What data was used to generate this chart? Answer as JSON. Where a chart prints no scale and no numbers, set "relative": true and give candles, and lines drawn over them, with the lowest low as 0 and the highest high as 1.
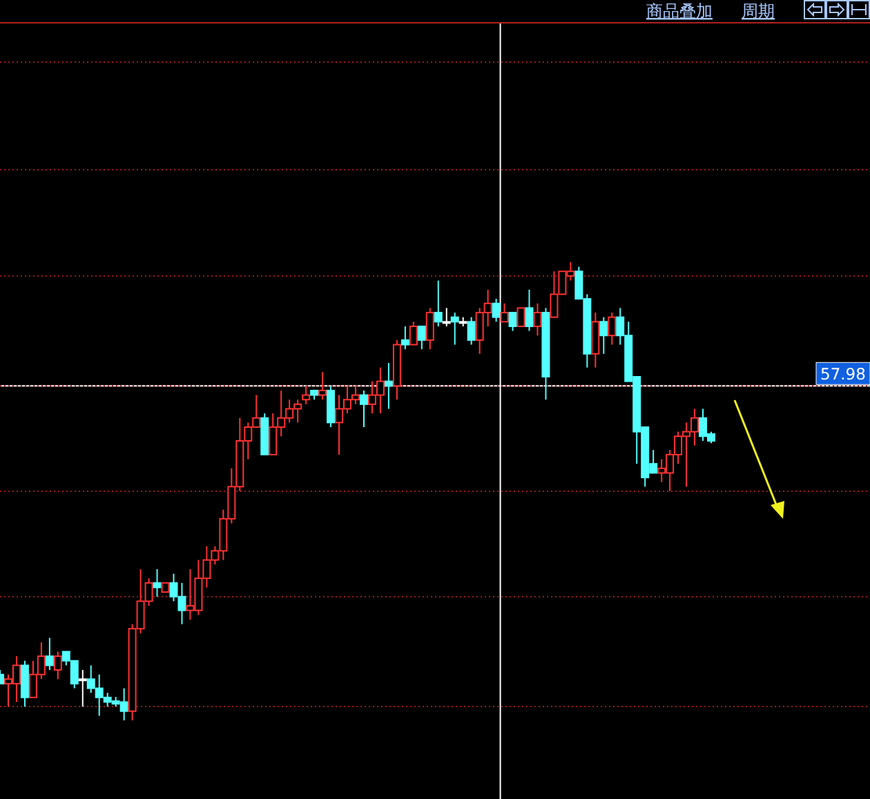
{
  "chart_data": {
    "type": "candlestick",
    "relative": true,
    "grid": true,
    "colors": [
      "#54ffff",
      "#ff3232",
      "#ff3232",
      "#54ffff",
      "#ff3232",
      "#ff3232",
      "#54ffff",
      "#ff3232",
      "#54ffff",
      "#54ffff",
      "#ffffff",
      "#54ffff",
      "#54ffff",
      "#54ffff",
      "#54ffff",
      "#54ffff",
      "#ff3232",
      "#ff3232",
      "#ff3232",
      "#54ffff",
      "#ff3232",
      "#54ffff",
      "#54ffff",
      "#ff3232",
      "#ff3232",
      "#ff3232",
      "#ff3232",
      "#ff3232",
      "#ff3232",
      "#ff3232",
      "#ff3232",
      "#ff3232",
      "#54ffff",
      "#ff3232",
      "#ff3232",
      "#ff3232",
      "#ff3232",
      "#ff3232",
      "#54ffff",
      "#ff3232",
      "#54ffff",
      "#ff3232",
      "#ff3232",
      "#ff3232",
      "#54ffff",
      "#ff3232",
      "#ff3232",
      "#54ffff",
      "#ff3232",
      "#54ffff",
      "#ff3232",
      "#54ffff",
      "#ff3232",
      "#54ffff",
      "#ffffff",
      "#54ffff",
      "#ffffff",
      "#54ffff",
      "#ff3232",
      "#ff3232",
      "#54ffff",
      "#ff3232",
      "#54ffff",
      "#ff3232",
      "#54ffff",
      "#ff3232",
      "#54ffff",
      "#ff3232",
      "#ff3232",
      "#ff3232",
      "#54ffff",
      "#54ffff",
      "#ff3232",
      "#54ffff",
      "#ff3232",
      "#54ffff",
      "#54ffff",
      "#54ffff",
      "#54ffff",
      "#54ffff",
      "#ff3232",
      "#ff3232",
      "#ff3232",
      "#ff3232",
      "#ff3232",
      "#54ffff",
      "#54ffff"
    ],
    "categories": [
      null,
      null,
      null,
      null,
      null,
      null,
      null,
      null,
      null,
      null,
      null,
      null,
      null,
      null,
      null,
      null,
      null,
      null,
      null,
      null,
      null,
      null,
      null,
      null,
      null,
      null,
      null,
      null,
      null,
      null,
      null,
      null,
      null,
      null,
      null,
      null,
      null,
      null,
      null,
      null,
      null,
      null,
      null,
      null,
      null,
      null,
      null,
      null,
      null,
      null,
      null,
      null,
      null,
      null,
      null,
      null,
      null,
      null,
      null,
      null,
      null,
      null,
      null,
      null,
      null,
      null,
      null,
      null,
      null,
      null,
      null,
      null,
      null,
      null,
      null,
      null,
      null,
      null,
      null,
      null,
      null,
      null,
      null,
      null,
      null,
      null,
      null
    ],
    "ohlc": [
      [
        0.1,
        0.11,
        0.08,
        0.08
      ],
      [
        0.08,
        0.1,
        0.03,
        0.09
      ],
      [
        0.08,
        0.14,
        0.04,
        0.12
      ],
      [
        0.12,
        0.13,
        0.03,
        0.05
      ],
      [
        0.05,
        0.13,
        0.05,
        0.1
      ],
      [
        0.1,
        0.17,
        0.09,
        0.14
      ],
      [
        0.14,
        0.18,
        0.11,
        0.12
      ],
      [
        0.11,
        0.15,
        0.09,
        0.14
      ],
      [
        0.15,
        0.15,
        0.12,
        0.13
      ],
      [
        0.13,
        0.13,
        0.07,
        0.08
      ],
      [
        0.09,
        0.11,
        0.03,
        0.09
      ],
      [
        0.09,
        0.12,
        0.06,
        0.07
      ],
      [
        0.07,
        0.1,
        0.01,
        0.05
      ],
      [
        0.05,
        0.06,
        0.03,
        0.04
      ],
      [
        0.042,
        0.051,
        0.03,
        0.036
      ],
      [
        0.04,
        0.07,
        0.0,
        0.02
      ],
      [
        0.02,
        0.21,
        0,
        0.2
      ],
      [
        0.2,
        0.33,
        0.19,
        0.26
      ],
      [
        0.26,
        0.31,
        0.25,
        0.3
      ],
      [
        0.3,
        0.33,
        0.27,
        0.29
      ],
      [
        0.28,
        0.3,
        0.28,
        0.3
      ],
      [
        0.3,
        0.32,
        0.26,
        0.27
      ],
      [
        0.27,
        0.3,
        0.21,
        0.24
      ],
      [
        0.24,
        0.33,
        0.22,
        0.25
      ],
      [
        0.24,
        0.35,
        0.23,
        0.31
      ],
      [
        0.31,
        0.38,
        0.29,
        0.35
      ],
      [
        0.35,
        0.38,
        0.34,
        0.37
      ],
      [
        0.37,
        0.46,
        0.35,
        0.44
      ],
      [
        0.44,
        0.55,
        0.43,
        0.51
      ],
      [
        0.51,
        0.66,
        0.5,
        0.61
      ],
      [
        0.61,
        0.65,
        0.57,
        0.64
      ],
      [
        0.64,
        0.71,
        0.64,
        0.66
      ],
      [
        0.66,
        0.67,
        0.58,
        0.58
      ],
      [
        0.58,
        0.67,
        0.58,
        0.64
      ],
      [
        0.64,
        0.72,
        0.62,
        0.66
      ],
      [
        0.66,
        0.7,
        0.65,
        0.68
      ],
      [
        0.68,
        0.7,
        0.65,
        0.69
      ],
      [
        0.7,
        0.73,
        0.69,
        0.71
      ],
      [
        0.72,
        0.72,
        0.7,
        0.71
      ],
      [
        0.71,
        0.76,
        0.7,
        0.72
      ],
      [
        0.72,
        0.73,
        0.64,
        0.65
      ],
      [
        0.65,
        0.71,
        0.58,
        0.68
      ],
      [
        0.68,
        0.73,
        0.67,
        0.7
      ],
      [
        0.7,
        0.73,
        0.69,
        0.71
      ],
      [
        0.71,
        0.72,
        0.64,
        0.69
      ],
      [
        0.69,
        0.74,
        0.67,
        0.71
      ],
      [
        0.71,
        0.77,
        0.67,
        0.74
      ],
      [
        0.74,
        0.78,
        0.68,
        0.73
      ],
      [
        0.73,
        0.83,
        0.7,
        0.82
      ],
      [
        0.83,
        0.86,
        0.81,
        0.82
      ],
      [
        0.82,
        0.87,
        0.82,
        0.86
      ],
      [
        0.86,
        0.86,
        0.81,
        0.83
      ],
      [
        0.83,
        0.9,
        0.81,
        0.89
      ],
      [
        0.89,
        0.96,
        0.86,
        0.87
      ],
      [
        0.87,
        0.9,
        0.86,
        0.87
      ],
      [
        0.88,
        0.89,
        0.82,
        0.87
      ],
      [
        0.87,
        0.88,
        0.86,
        0.87
      ],
      [
        0.87,
        0.88,
        0.82,
        0.83
      ],
      [
        0.83,
        0.9,
        0.8,
        0.89
      ],
      [
        0.89,
        0.94,
        0.86,
        0.91
      ],
      [
        0.91,
        0.92,
        0.87,
        0.88
      ],
      [
        0.87,
        0.91,
        0.87,
        0.89
      ],
      [
        0.89,
        0.89,
        0.85,
        0.86
      ],
      [
        0.86,
        0.9,
        0.86,
        0.9
      ],
      [
        0.9,
        0.94,
        0.85,
        0.86
      ],
      [
        0.86,
        0.91,
        0.84,
        0.89
      ],
      [
        0.89,
        0.9,
        0.7,
        0.75
      ],
      [
        0.88,
        0.98,
        0.88,
        0.93
      ],
      [
        0.93,
        0.98,
        0.93,
        0.98
      ],
      [
        0.97,
        1.0,
        0.96,
        0.98
      ],
      [
        0.98,
        0.99,
        0.92,
        0.92
      ],
      [
        0.92,
        0.93,
        0.77,
        0.8
      ],
      [
        0.8,
        0.89,
        0.77,
        0.87
      ],
      [
        0.87,
        0.88,
        0.8,
        0.84
      ],
      [
        0.84,
        0.89,
        0.82,
        0.88
      ],
      [
        0.88,
        0.9,
        0.82,
        0.84
      ],
      [
        0.84,
        0.87,
        0.74,
        0.74
      ],
      [
        0.75,
        0.75,
        0.56,
        0.63
      ],
      [
        0.64,
        0.64,
        0.51,
        0.53
      ],
      [
        0.56,
        0.59,
        0.54,
        0.54
      ],
      [
        0.54,
        0.57,
        0.52,
        0.55
      ],
      [
        0.54,
        0.59,
        0.5,
        0.58
      ],
      [
        0.58,
        0.63,
        0.56,
        0.62
      ],
      [
        0.62,
        0.65,
        0.51,
        0.63
      ],
      [
        0.63,
        0.68,
        0.6,
        0.66
      ],
      [
        0.66,
        0.68,
        0.61,
        0.62
      ],
      [
        0.625,
        0.63,
        0.605,
        0.61
      ]
    ],
    "ref_lines": [
      {
        "axis": "y",
        "value": 0.73,
        "color": "#ffffff"
      },
      {
        "axis": "y",
        "value": 0.97,
        "color": "#a01818",
        "line_style": "dotted"
      },
      {
        "axis": "y",
        "value": 0.73,
        "color": "#a01818",
        "line_style": "dotted"
      },
      {
        "axis": "y",
        "value": 0.5,
        "color": "#a01818",
        "line_style": "dotted"
      },
      {
        "axis": "y",
        "value": 0.27,
        "color": "#a01818",
        "line_style": "dotted"
      },
      {
        "axis": "y",
        "value": 0.03,
        "color": "#a01818",
        "line_style": "dotted"
      }
    ],
    "annotations": [
      "商品叠加",
      "周期",
      "57.98"
    ]
  }
}
